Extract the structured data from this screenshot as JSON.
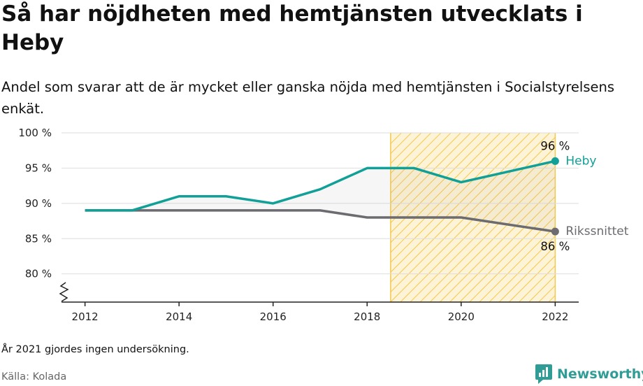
{
  "title": "Så har nöjdheten med hemtjänsten utvecklats i Heby",
  "subtitle": "Andel som svarar att de är mycket eller ganska nöjda med hemtjänsten i Socialstyrelsens enkät.",
  "footnote": "År 2021 gjordes ingen undersökning.",
  "source": "Källa: Kolada",
  "brand": {
    "name": "Newsworthy",
    "icon": "newsworthy-logo-icon",
    "color": "#2f9d96"
  },
  "chart_data": {
    "type": "line",
    "x": [
      2012,
      2013,
      2014,
      2015,
      2016,
      2017,
      2018,
      2019,
      2020,
      2022
    ],
    "series": [
      {
        "name": "Heby",
        "color": "#11a097",
        "values": [
          89,
          89,
          91,
          91,
          90,
          92,
          95,
          95,
          93,
          96
        ],
        "end_label": "96 %"
      },
      {
        "name": "Rikssnittet",
        "color": "#6b6b70",
        "values": [
          89,
          89,
          89,
          89,
          89,
          89,
          88,
          88,
          88,
          86
        ],
        "end_label": "86 %"
      }
    ],
    "xticks": [
      "2012",
      "2014",
      "2016",
      "2018",
      "2020",
      "2022"
    ],
    "yticks": [
      "100 %",
      "95 %",
      "90 %",
      "85 %",
      "80 %"
    ],
    "ylim": [
      76,
      100
    ],
    "xlim": [
      2011.5,
      2022.5
    ],
    "grid": true,
    "axis_break": true,
    "highlight_range": [
      2018.5,
      2022
    ],
    "highlight_color": "#f6c84c"
  }
}
